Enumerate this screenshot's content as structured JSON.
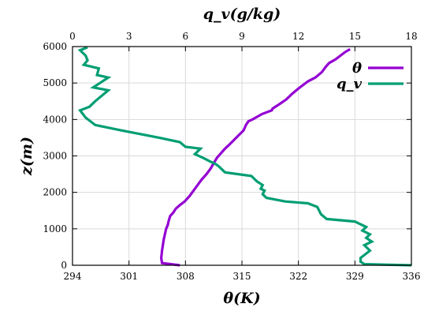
{
  "chart_data": {
    "type": "line",
    "xlabel_bottom": "θ(K)",
    "xlabel_top": "q_v(g/kg)",
    "ylabel": "z(m)",
    "xlim_bottom": [
      294,
      336
    ],
    "xlim_top": [
      0,
      18
    ],
    "ylim": [
      0,
      6000
    ],
    "xticks_bottom": [
      294,
      301,
      308,
      315,
      322,
      329,
      336
    ],
    "xticks_top": [
      0,
      3,
      6,
      9,
      12,
      15,
      18
    ],
    "yticks": [
      0,
      1000,
      2000,
      3000,
      4000,
      5000,
      6000
    ],
    "grid": true,
    "legend_position": "top-right",
    "series": [
      {
        "name": "θ",
        "axis": "bottom",
        "color": "#9400d3",
        "x": [
          307.3,
          305.1,
          305.0,
          305.1,
          305.3,
          305.6,
          305.8,
          305.9,
          306.1,
          306.5,
          306.8,
          307.3,
          307.9,
          308.5,
          309.0,
          309.5,
          310.0,
          310.6,
          311.1,
          311.5,
          311.9,
          312.3,
          312.9,
          313.4,
          314.3,
          315.2,
          315.5,
          315.8,
          316.3,
          316.7,
          317.5,
          318.7,
          318.8,
          319.5,
          320.5,
          321.2,
          322.0,
          322.6,
          323.2,
          324.1,
          324.9,
          325.4,
          325.8,
          326.6,
          327.2,
          327.8,
          328.4
        ],
        "y": [
          0,
          60,
          200,
          400,
          700,
          1000,
          1100,
          1200,
          1350,
          1450,
          1550,
          1650,
          1750,
          1900,
          2050,
          2200,
          2350,
          2500,
          2650,
          2800,
          2950,
          3050,
          3200,
          3300,
          3500,
          3700,
          3850,
          3950,
          4000,
          4050,
          4150,
          4250,
          4300,
          4400,
          4550,
          4700,
          4850,
          4950,
          5050,
          5150,
          5300,
          5450,
          5550,
          5650,
          5750,
          5850,
          5930
        ]
      },
      {
        "name": "q_v",
        "axis": "top",
        "color": "#009e73",
        "x": [
          18.0,
          15.5,
          15.3,
          15.3,
          15.8,
          15.5,
          15.9,
          15.6,
          15.8,
          15.4,
          15.6,
          15.2,
          15.0,
          13.5,
          13.2,
          13.0,
          12.5,
          11.3,
          10.3,
          10.1,
          10.2,
          10.0,
          10.1,
          9.8,
          9.5,
          8.1,
          7.8,
          7.6,
          7.3,
          7.0,
          6.5,
          6.8,
          6.0,
          5.7,
          4.6,
          3.6,
          2.6,
          1.2,
          0.7,
          0.4,
          0.9,
          1.2,
          1.9,
          1.1,
          1.9,
          1.3,
          1.4,
          0.6,
          0.8,
          0.7,
          0.4,
          0.8
        ],
        "y": [
          0,
          30,
          100,
          200,
          400,
          550,
          650,
          750,
          850,
          950,
          1050,
          1150,
          1200,
          1270,
          1400,
          1600,
          1700,
          1750,
          1850,
          1950,
          2050,
          2100,
          2200,
          2300,
          2450,
          2550,
          2700,
          2780,
          2850,
          2930,
          3050,
          3200,
          3250,
          3380,
          3500,
          3600,
          3700,
          3850,
          4050,
          4250,
          4350,
          4500,
          4800,
          4880,
          5150,
          5220,
          5400,
          5500,
          5620,
          5750,
          5900,
          5980
        ]
      }
    ]
  }
}
